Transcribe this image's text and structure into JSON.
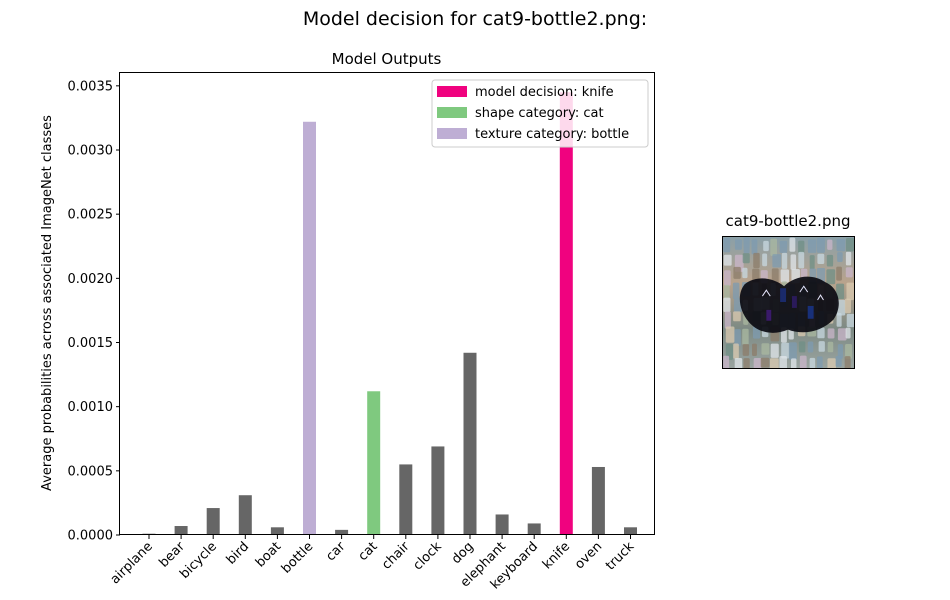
{
  "figure": {
    "suptitle": "Model decision for cat9-bottle2.png:"
  },
  "chart_data": {
    "type": "bar",
    "title": "Model Outputs",
    "xlabel": "",
    "ylabel": "Average probabilities across associated ImageNet classes",
    "categories": [
      "airplane",
      "bear",
      "bicycle",
      "bird",
      "boat",
      "bottle",
      "car",
      "cat",
      "chair",
      "clock",
      "dog",
      "elephant",
      "keyboard",
      "knife",
      "oven",
      "truck"
    ],
    "values": [
      1e-05,
      7e-05,
      0.00021,
      0.00031,
      6e-05,
      0.00322,
      4e-05,
      0.00112,
      0.00055,
      0.00069,
      0.00142,
      0.00016,
      9e-05,
      0.00345,
      0.00053,
      6e-05
    ],
    "ylim": [
      0,
      0.0036
    ],
    "yticks": [
      "0.0000",
      "0.0005",
      "0.0010",
      "0.0015",
      "0.0020",
      "0.0025",
      "0.0030",
      "0.0035"
    ],
    "ytick_values": [
      0,
      0.0005,
      0.001,
      0.0015,
      0.002,
      0.0025,
      0.003,
      0.0035
    ],
    "grid": false,
    "legend_position": "top-right",
    "default_color": "#666666",
    "highlights": [
      {
        "category": "knife",
        "label": "model decision: knife",
        "color": "#f0027f"
      },
      {
        "category": "cat",
        "label": "shape category: cat",
        "color": "#7fc97f"
      },
      {
        "category": "bottle",
        "label": "texture category: bottle",
        "color": "#beaed4"
      }
    ]
  },
  "thumbnail": {
    "title": "cat9-bottle2.png",
    "icon": "stylized-image-cat-bottle-texture"
  }
}
